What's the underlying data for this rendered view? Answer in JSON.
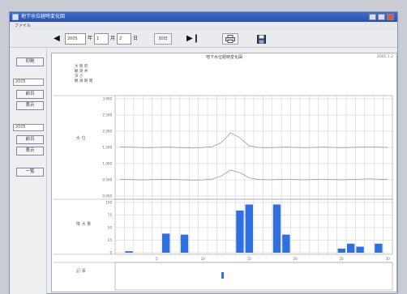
{
  "window": {
    "title": "地下水位経時変化図",
    "menu": "ファイル"
  },
  "toolbar": {
    "year": "2005",
    "year_unit": "年",
    "month": "1",
    "month_unit": "月",
    "day": "2",
    "day_unit": "日",
    "range_button": "30日"
  },
  "sidebar": {
    "print_button": "印刷",
    "field_1": "2005",
    "btn_1a": "前日",
    "btn_1b": "表示",
    "field_2": "2005",
    "btn_2a": "前日",
    "btn_2b": "表示",
    "list_button": "一覧"
  },
  "panel": {
    "title": "地下水位経時変化図",
    "code": "2005.1.2",
    "info": [
      "大 阪 府",
      "観 測 井",
      "深 さ",
      "観 測 期 間"
    ]
  },
  "chart_data": [
    {
      "type": "line",
      "ylabel": "水 位",
      "yticks": [
        "3.000",
        "2.500",
        "2.000",
        "1.500",
        "1.000",
        "0.500",
        "0.000"
      ],
      "ylim": [
        0,
        3
      ],
      "x": [
        1,
        2,
        3,
        4,
        5,
        6,
        7,
        8,
        9,
        10,
        11,
        12,
        13,
        14,
        15,
        16,
        17,
        18,
        19,
        20,
        21,
        22,
        23,
        24,
        25,
        26,
        27,
        28,
        29,
        30
      ],
      "series": [
        {
          "values": [
            1.52,
            1.51,
            1.5,
            1.49,
            1.5,
            1.51,
            1.5,
            1.49,
            1.48,
            1.5,
            1.52,
            1.65,
            1.95,
            1.8,
            1.55,
            1.5,
            1.49,
            1.5,
            1.51,
            1.5,
            1.49,
            1.5,
            1.51,
            1.5,
            1.49,
            1.5,
            1.51,
            1.52,
            1.51,
            1.5
          ]
        },
        {
          "values": [
            0.52,
            0.51,
            0.5,
            0.5,
            0.51,
            0.52,
            0.51,
            0.5,
            0.49,
            0.5,
            0.52,
            0.62,
            0.8,
            0.72,
            0.56,
            0.51,
            0.5,
            0.51,
            0.52,
            0.51,
            0.5,
            0.51,
            0.52,
            0.51,
            0.5,
            0.51,
            0.52,
            0.53,
            0.52,
            0.51
          ]
        }
      ],
      "grid": true
    },
    {
      "type": "bar",
      "ylabel": "降 水 量",
      "yticks": [
        "100",
        "75",
        "50",
        "25",
        "0"
      ],
      "ylim": [
        0,
        100
      ],
      "x": [
        1,
        2,
        3,
        4,
        5,
        6,
        7,
        8,
        9,
        10,
        11,
        12,
        13,
        14,
        15,
        16,
        17,
        18,
        19,
        20,
        21,
        22,
        23,
        24,
        25,
        26,
        27,
        28,
        29,
        30
      ],
      "values": [
        0,
        3,
        0,
        0,
        0,
        38,
        0,
        36,
        0,
        0,
        0,
        0,
        0,
        84,
        96,
        0,
        0,
        96,
        36,
        0,
        0,
        0,
        0,
        0,
        8,
        18,
        12,
        0,
        18,
        0
      ],
      "color": "#2f6fe0",
      "grid": true
    }
  ],
  "events": {
    "label": "記 事"
  }
}
